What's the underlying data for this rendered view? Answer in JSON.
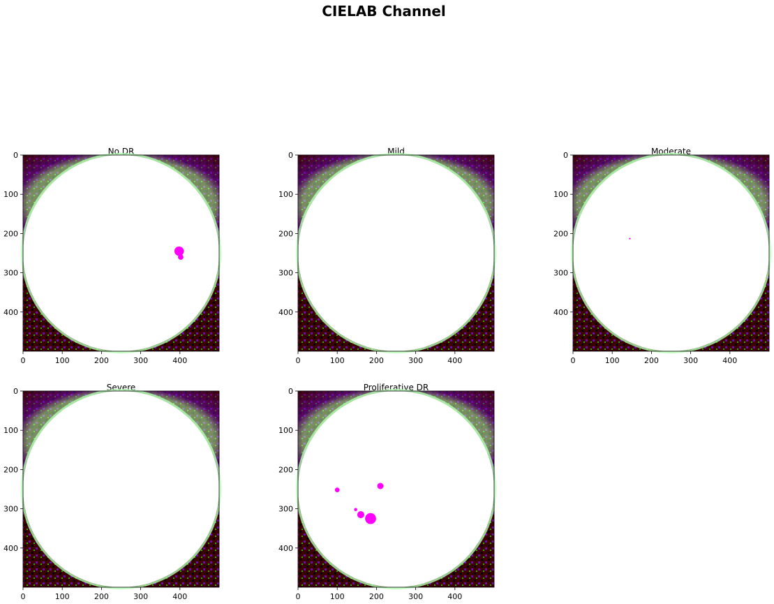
{
  "figure_title": "CIELAB Channel",
  "chart_data": [
    {
      "type": "image",
      "title": "No DR",
      "xticks": [
        0,
        100,
        200,
        300,
        400
      ],
      "yticks": [
        0,
        100,
        200,
        300,
        400
      ],
      "xlim": [
        0,
        500
      ],
      "ylim": [
        500,
        0
      ],
      "lesions": [
        [
          398,
          245,
          12
        ],
        [
          402,
          260,
          7
        ]
      ]
    },
    {
      "type": "image",
      "title": "Mild",
      "xticks": [
        0,
        100,
        200,
        300,
        400
      ],
      "yticks": [
        0,
        100,
        200,
        300,
        400
      ],
      "xlim": [
        0,
        500
      ],
      "ylim": [
        500,
        0
      ],
      "lesions": []
    },
    {
      "type": "image",
      "title": "Moderate",
      "xticks": [
        0,
        100,
        200,
        300,
        400
      ],
      "yticks": [
        0,
        100,
        200,
        300,
        400
      ],
      "xlim": [
        0,
        500
      ],
      "ylim": [
        500,
        0
      ],
      "lesions": [
        [
          145,
          213,
          2
        ]
      ]
    },
    {
      "type": "image",
      "title": "Severe",
      "xticks": [
        0,
        100,
        200,
        300,
        400
      ],
      "yticks": [
        0,
        100,
        200,
        300,
        400
      ],
      "xlim": [
        0,
        500
      ],
      "ylim": [
        500,
        0
      ],
      "lesions": []
    },
    {
      "type": "image",
      "title": "Proliferative DR",
      "xticks": [
        0,
        100,
        200,
        300,
        400
      ],
      "yticks": [
        0,
        100,
        200,
        300,
        400
      ],
      "xlim": [
        0,
        500
      ],
      "ylim": [
        500,
        0
      ],
      "lesions": [
        [
          210,
          242,
          8
        ],
        [
          100,
          252,
          6
        ],
        [
          185,
          325,
          14
        ],
        [
          160,
          315,
          9
        ],
        [
          147,
          302,
          4
        ]
      ]
    }
  ],
  "colors": {
    "dark_red": "#3d0000",
    "purple": "#6a0dad",
    "light_green": "#b0ffb0",
    "green": "#33aa00",
    "magenta": "#ff00ff",
    "disc": "#ffffff"
  }
}
